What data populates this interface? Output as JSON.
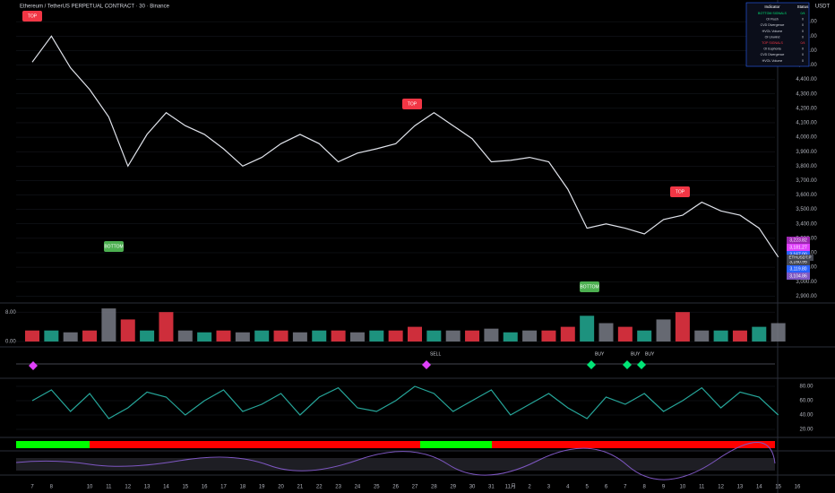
{
  "header": {
    "title": "Ethereum / TetherUS PERPETUAL CONTRACT · 30 · Binance",
    "currency": "USDT"
  },
  "price_tags": [
    {
      "text": "3,223.82",
      "color": "#9c27b0"
    },
    {
      "text": "3,181.27",
      "color": "#e040fb"
    },
    {
      "text": "3,167.00",
      "color": "#2962ff"
    },
    {
      "text": "3,160.95",
      "color": "#434651"
    },
    {
      "text": "3,119.80",
      "color": "#2962ff"
    },
    {
      "text": "3,104.86",
      "color": "#7e57c2"
    }
  ],
  "symbol_tag": "ETHUSDT.P",
  "indicator_table": {
    "headers": [
      "Indicator",
      "Status"
    ],
    "rows": [
      [
        "BOTTOM SIGNALS",
        "0/4"
      ],
      [
        "OI Flush",
        "0"
      ],
      [
        "CVD Divergence",
        "0"
      ],
      [
        "HVOL Volume",
        "0"
      ],
      [
        "OI Unwind",
        "0"
      ],
      [
        "TOP SIGNALS",
        "0/4"
      ],
      [
        "OI Euphoria",
        "0"
      ],
      [
        "CVD Divergence",
        "0"
      ],
      [
        "HVOL Volume",
        "0"
      ]
    ]
  },
  "chart_data": [
    {
      "type": "line",
      "color": "#e0e3eb",
      "categories": [
        "7",
        "8",
        null,
        "10",
        "11",
        "12",
        "13",
        "14",
        "15",
        "16",
        "17",
        "18",
        "19",
        "20",
        "21",
        "22",
        "23",
        "24",
        "25",
        "26",
        "27",
        "28",
        "29",
        "30",
        "31",
        "11月",
        "2",
        "3",
        "4",
        "5",
        "6",
        "7",
        "8",
        "9",
        "10",
        "11",
        "12",
        "13",
        "14",
        "15",
        "16"
      ],
      "values": [
        4520,
        4700,
        4480,
        4330,
        4140,
        3800,
        4020,
        4170,
        4080,
        4020,
        3920,
        3800,
        3860,
        3955,
        4020,
        3955,
        3830,
        3890,
        3920,
        3955,
        4080,
        4170,
        4080,
        3990,
        3830,
        3840,
        3860,
        3830,
        3640,
        3370,
        3400,
        3370,
        3330,
        3430,
        3460,
        3550,
        3490,
        3460,
        3370,
        3170,
        null
      ],
      "ylim": [
        2840,
        4950
      ],
      "yticks": [
        {
          "value": 2900,
          "label": "2,900.00"
        },
        {
          "value": 3000,
          "label": "3,000.00"
        },
        {
          "value": 3100,
          "label": "3,100.00"
        },
        {
          "value": 3200,
          "label": "3,200.00"
        },
        {
          "value": 3300,
          "label": "3,300.00"
        },
        {
          "value": 3400,
          "label": "3,400.00"
        },
        {
          "value": 3500,
          "label": "3,500.00"
        },
        {
          "value": 3600,
          "label": "3,600.00"
        },
        {
          "value": 3700,
          "label": "3,700.00"
        },
        {
          "value": 3800,
          "label": "3,800.00"
        },
        {
          "value": 3900,
          "label": "3,900.00"
        },
        {
          "value": 4000,
          "label": "4,000.00"
        },
        {
          "value": 4100,
          "label": "4,100.00"
        },
        {
          "value": 4200,
          "label": "4,200.00"
        },
        {
          "value": 4300,
          "label": "4,300.00"
        },
        {
          "value": 4400,
          "label": "4,400.00"
        },
        {
          "value": 4500,
          "label": "4,500.00"
        },
        {
          "value": 4600,
          "label": "4,600.00"
        },
        {
          "value": 4700,
          "label": "4,700.00"
        },
        {
          "value": 4800,
          "label": "4,800.00"
        }
      ],
      "annotations": [
        "TOP",
        "TOP",
        "TOP",
        "BOTTOM",
        "BOTTOM"
      ]
    },
    {
      "type": "bar",
      "values": [
        3,
        3,
        2.5,
        3,
        9,
        6,
        3,
        8,
        3,
        2.5,
        3,
        2.5,
        3,
        3,
        2.5,
        3,
        3,
        2.5,
        3,
        3,
        4,
        3,
        3,
        3,
        3.5,
        2.5,
        3,
        3,
        4,
        7,
        5,
        4,
        3,
        6,
        8,
        3,
        3,
        3,
        4,
        5,
        null
      ],
      "colors": [
        "#f23645",
        "#22ab94",
        "#787b86",
        "#f23645",
        "#787b86",
        "#f23645",
        "#22ab94",
        "#f23645",
        "#787b86",
        "#22ab94",
        "#f23645",
        "#787b86",
        "#22ab94",
        "#f23645",
        "#787b86",
        "#22ab94",
        "#f23645",
        "#787b86",
        "#22ab94",
        "#f23645",
        "#f23645",
        "#22ab94",
        "#787b86",
        "#f23645",
        "#787b86",
        "#22ab94",
        "#787b86",
        "#f23645",
        "#f23645",
        "#22ab94",
        "#787b86",
        "#f23645",
        "#22ab94",
        "#787b86",
        "#f23645",
        "#787b86",
        "#22ab94",
        "#f23645",
        "#22ab94",
        "#787b86",
        null
      ],
      "ylim": [
        0,
        10
      ],
      "yticks": [
        {
          "value": 0,
          "label": "0.00"
        },
        {
          "value": 8,
          "label": "8.00"
        }
      ],
      "signals": [
        "SELL",
        "BUY",
        "BUY",
        "BUY"
      ]
    },
    {
      "type": "line",
      "color": "#26a69a",
      "values": [
        60,
        75,
        45,
        70,
        35,
        50,
        72,
        65,
        40,
        60,
        75,
        45,
        55,
        70,
        40,
        65,
        78,
        50,
        45,
        60,
        80,
        70,
        45,
        60,
        75,
        40,
        55,
        70,
        50,
        35,
        65,
        55,
        70,
        45,
        60,
        78,
        50,
        72,
        65,
        40,
        null
      ],
      "ylim": [
        12.5,
        87.5
      ],
      "yticks": [
        {
          "value": 20,
          "label": "20.00"
        },
        {
          "value": 40,
          "label": "40.00"
        },
        {
          "value": 60,
          "label": "60.00"
        },
        {
          "value": 80,
          "label": "80.00"
        }
      ]
    }
  ]
}
